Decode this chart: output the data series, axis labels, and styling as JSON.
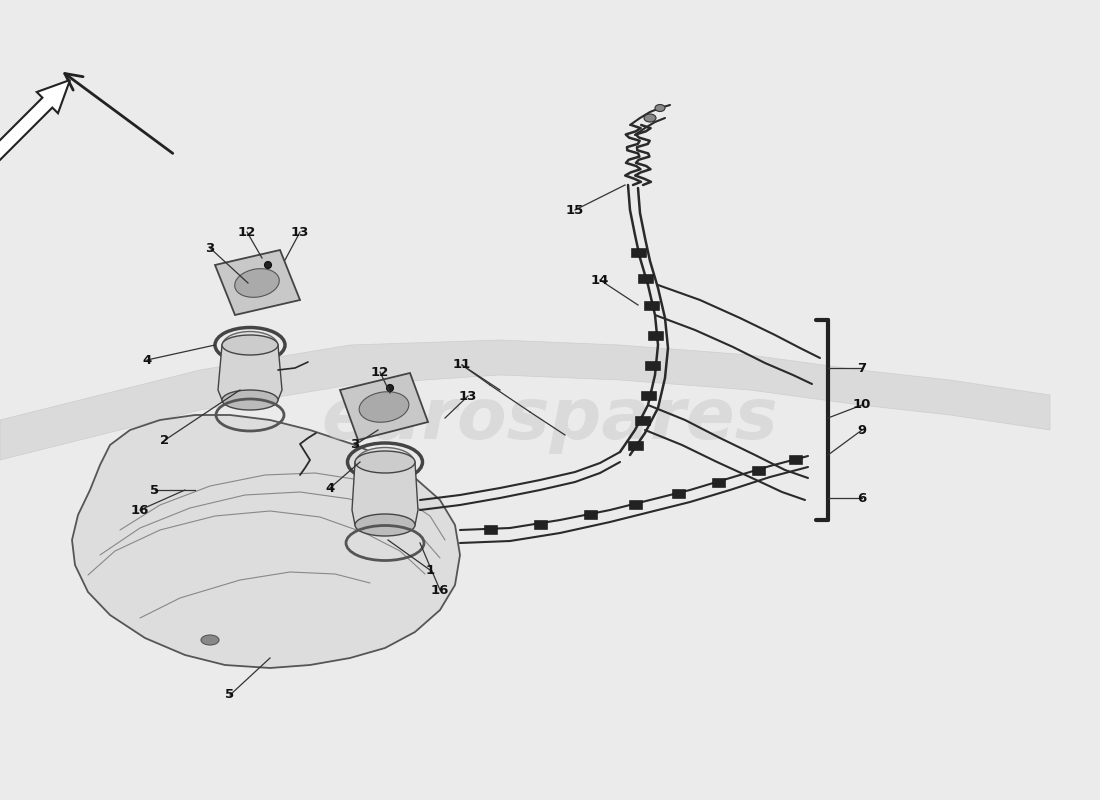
{
  "bg_color": "#ebebeb",
  "watermark": "eurospares",
  "watermark_color": "#cccccc",
  "watermark_alpha": 0.55,
  "lc": "#2a2a2a",
  "pc": "#3a3a3a",
  "tank_fc": "#dddddd",
  "tank_ec": "#555555",
  "part_fc": "#c8c8c8",
  "part_ec": "#444444",
  "clip_fc": "#222222",
  "swoosh_fc": "#d0d0d0",
  "swoosh_alpha": 0.6,
  "arrow_fc": "#ffffff",
  "arrow_ec": "#222222"
}
